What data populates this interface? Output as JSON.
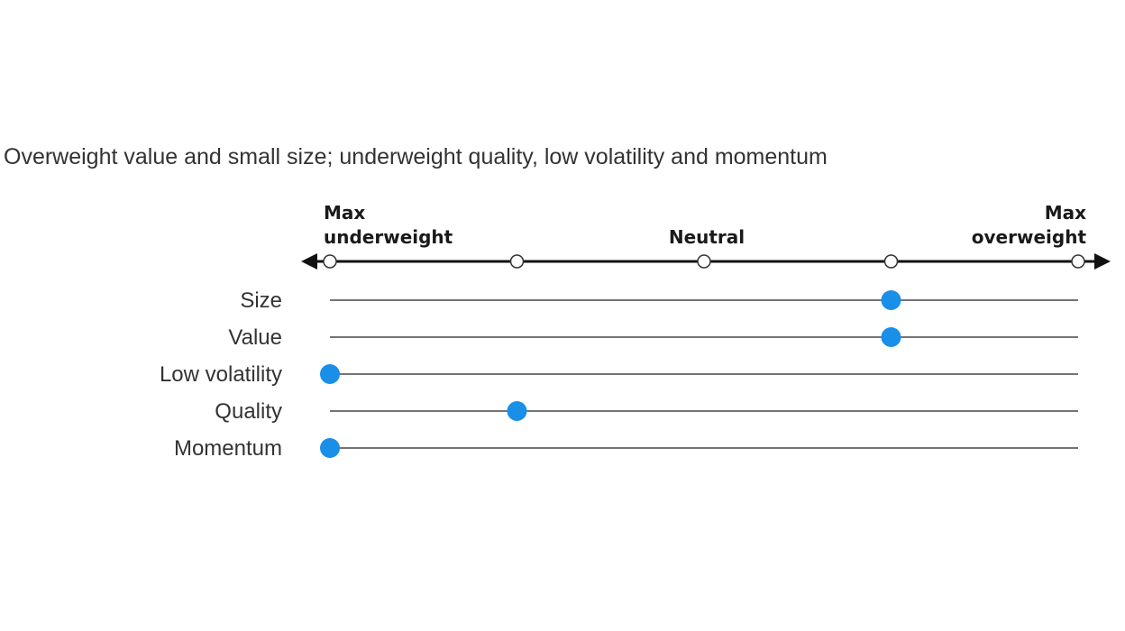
{
  "chart_data": {
    "type": "scatter",
    "title": "Overweight value and small size; underweight quality, low volatility and momentum",
    "xlim": [
      0,
      4
    ],
    "ticks": [
      0,
      1,
      2,
      3,
      4
    ],
    "axis_labels": {
      "min": [
        "Max",
        "underweight"
      ],
      "neutral": "Neutral",
      "max": [
        "Max",
        "overweight"
      ]
    },
    "categories": [
      "Size",
      "Value",
      "Low volatility",
      "Quality",
      "Momentum"
    ],
    "values": [
      3,
      3,
      0,
      1,
      0
    ],
    "colors": {
      "marker": "#1a8fe8",
      "axis": "#111111",
      "row_line": "#222222"
    }
  }
}
